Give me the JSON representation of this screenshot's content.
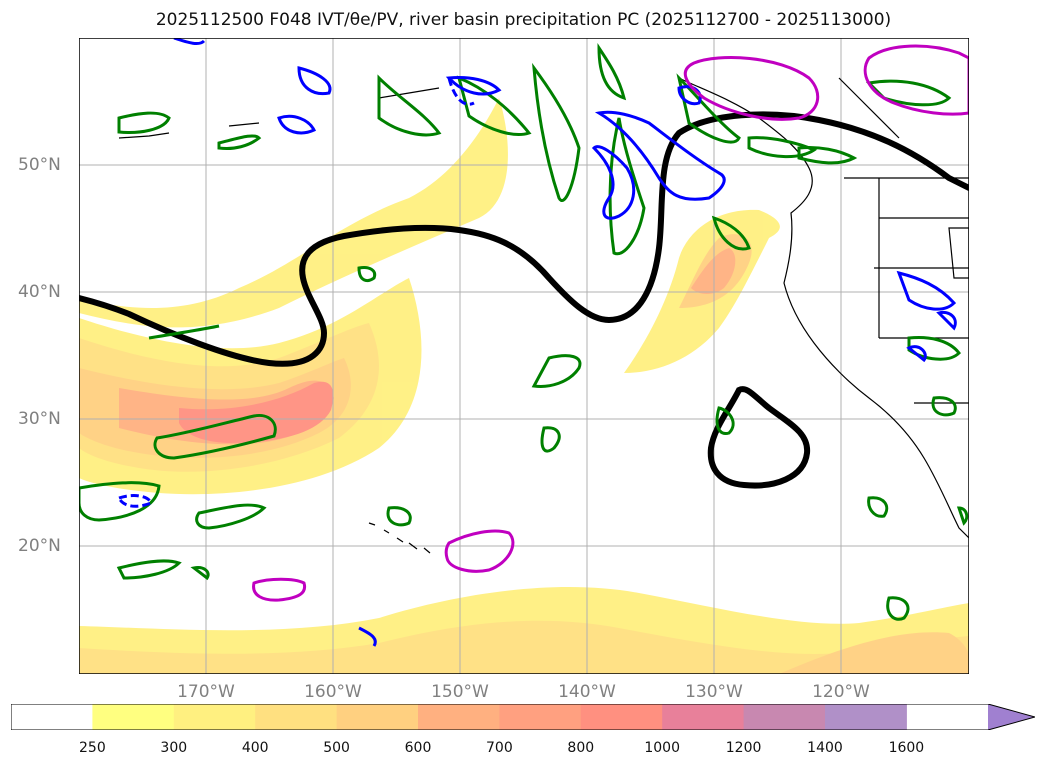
{
  "title": "2025112500 F048 IVT/θe/PV, river basin precipitation PC (2025112700 - 2025113000)",
  "lat_labels": [
    "50°N",
    "40°N",
    "30°N",
    "20°N"
  ],
  "lon_labels": [
    "170°W",
    "160°W",
    "150°W",
    "140°W",
    "130°W",
    "120°W"
  ],
  "colorbar": {
    "ticks": [
      "250",
      "300",
      "400",
      "500",
      "600",
      "700",
      "800",
      "1000",
      "1200",
      "1400",
      "1600"
    ],
    "colors": [
      "#ffffff",
      "#ffff80",
      "#fff080",
      "#ffe080",
      "#ffd080",
      "#ffb080",
      "#ffa080",
      "#ff9080",
      "#e8809a",
      "#c888b0",
      "#b090c8",
      "#a080d0"
    ],
    "extend": "max"
  },
  "colors": {
    "ivt_contour": "#000000",
    "pv_green": "#008000",
    "pv_blue": "#0000ff",
    "pv_magenta": "#c000c0",
    "grid": "#b0b0b0",
    "coast": "#000000"
  },
  "map_extent": {
    "lon_range": [
      "180°W",
      "110°W"
    ],
    "lat_range": [
      "10°N",
      "60°N"
    ]
  }
}
